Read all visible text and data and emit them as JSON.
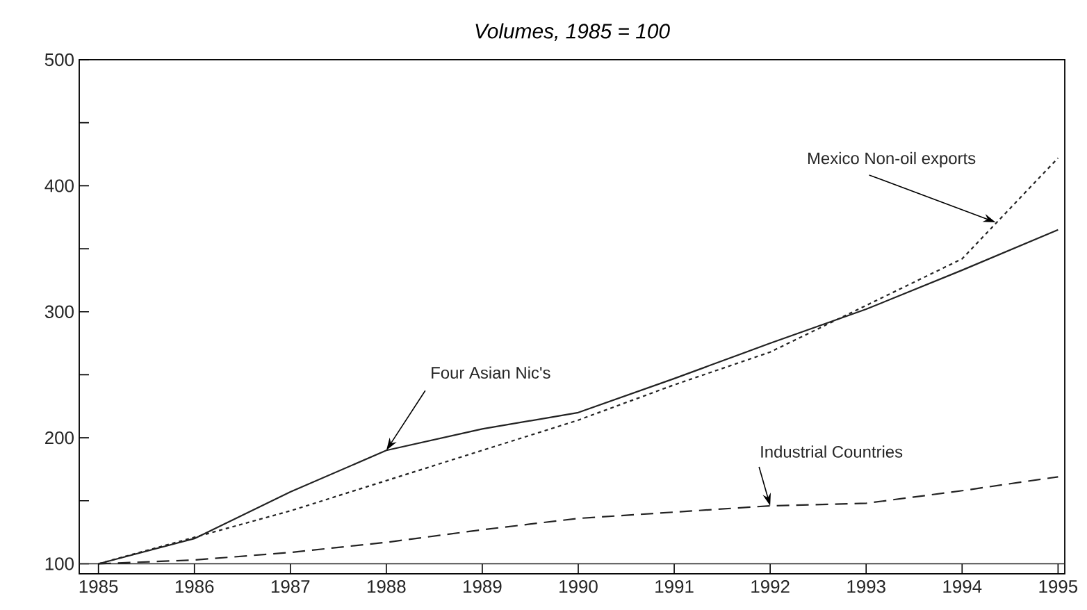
{
  "chart_data": {
    "type": "line",
    "title": "Volumes, 1985 = 100",
    "x": [
      1985,
      1986,
      1987,
      1988,
      1989,
      1990,
      1991,
      1992,
      1993,
      1994,
      1995
    ],
    "series": [
      {
        "color": "#222222",
        "line_style": "solid",
        "values": [
          100,
          120,
          157,
          190,
          207,
          220,
          247,
          275,
          302,
          333,
          365
        ]
      },
      {
        "color": "#222222",
        "line_style": "dotted",
        "values": [
          100,
          121,
          142,
          166,
          190,
          214,
          242,
          268,
          305,
          342,
          422
        ]
      },
      {
        "color": "#222222",
        "line_style": "dashed",
        "values": [
          100,
          103,
          109,
          117,
          127,
          136,
          141,
          146,
          148,
          158,
          169
        ]
      }
    ],
    "xlim": [
      1984.8,
      1995.07
    ],
    "ylim": [
      92,
      500
    ],
    "xticks": [
      1985,
      1986,
      1987,
      1988,
      1989,
      1990,
      1991,
      1992,
      1993,
      1994,
      1995
    ],
    "yticks": [
      100,
      {
        "value": 150,
        "label": null
      },
      200,
      {
        "value": 250,
        "label": null
      },
      300,
      {
        "value": 350,
        "label": null
      },
      400,
      {
        "value": 450,
        "label": null
      },
      500
    ],
    "ref_lines": [
      {
        "axis": "y",
        "value": 100,
        "color": "#222222"
      }
    ],
    "annotations": [
      {
        "text": "Four Asian Nic's",
        "x": 1988,
        "y": 190
      },
      {
        "text": "Mexico Non-oil exports",
        "x": 1994.35,
        "y": 371
      },
      {
        "text": "Industrial Countries",
        "x": 1992,
        "y": 146
      }
    ],
    "grid": false,
    "marker": "none"
  }
}
